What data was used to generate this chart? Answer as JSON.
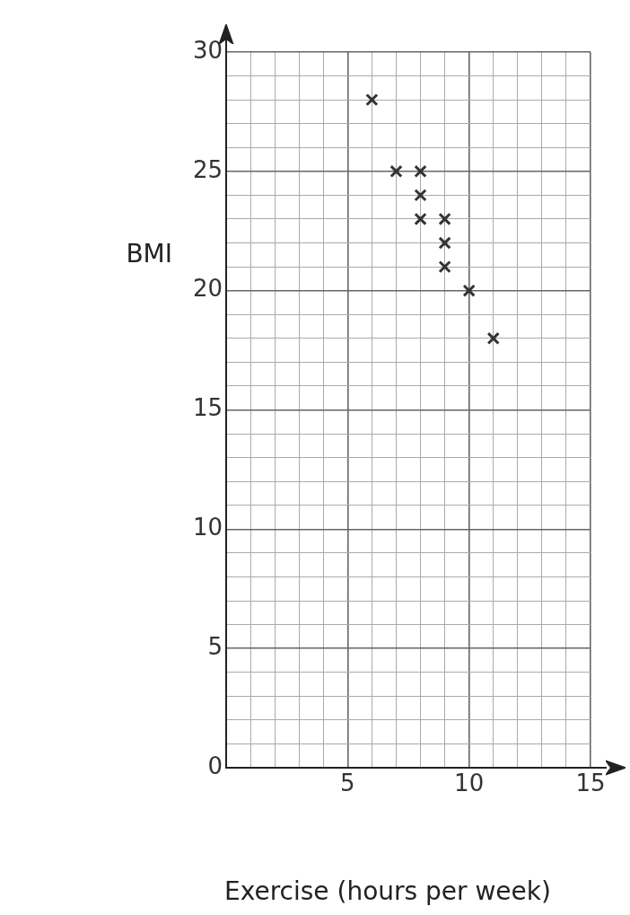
{
  "chart_data": {
    "type": "scatter",
    "xlabel": "Exercise (hours per week)",
    "ylabel": "BMI",
    "x": [
      6,
      7,
      8,
      8,
      8,
      9,
      9,
      9,
      10,
      11
    ],
    "values": [
      28,
      25,
      25,
      24,
      23,
      23,
      22,
      21,
      20,
      18
    ],
    "color": "#333333",
    "marker": "cross",
    "grid": true,
    "legend": false,
    "xlim": [
      0,
      15
    ],
    "xticks": [
      {
        "value": 0,
        "label": null
      },
      {
        "value": 1,
        "label": null
      },
      {
        "value": 2,
        "label": null
      },
      {
        "value": 3,
        "label": null
      },
      {
        "value": 4,
        "label": null
      },
      5,
      {
        "value": 6,
        "label": null
      },
      {
        "value": 7,
        "label": null
      },
      {
        "value": 8,
        "label": null
      },
      {
        "value": 9,
        "label": null
      },
      10,
      {
        "value": 11,
        "label": null
      },
      {
        "value": 12,
        "label": null
      },
      {
        "value": 13,
        "label": null
      },
      {
        "value": 14,
        "label": null
      },
      15
    ],
    "ylim": [
      0,
      30
    ],
    "yticks": [
      0,
      {
        "value": 1,
        "label": null
      },
      {
        "value": 2,
        "label": null
      },
      {
        "value": 3,
        "label": null
      },
      {
        "value": 4,
        "label": null
      },
      5,
      {
        "value": 6,
        "label": null
      },
      {
        "value": 7,
        "label": null
      },
      {
        "value": 8,
        "label": null
      },
      {
        "value": 9,
        "label": null
      },
      10,
      {
        "value": 11,
        "label": null
      },
      {
        "value": 12,
        "label": null
      },
      {
        "value": 13,
        "label": null
      },
      {
        "value": 14,
        "label": null
      },
      15,
      {
        "value": 16,
        "label": null
      },
      {
        "value": 17,
        "label": null
      },
      {
        "value": 18,
        "label": null
      },
      {
        "value": 19,
        "label": null
      },
      20,
      {
        "value": 21,
        "label": null
      },
      {
        "value": 22,
        "label": null
      },
      {
        "value": 23,
        "label": null
      },
      {
        "value": 24,
        "label": null
      },
      25,
      {
        "value": 26,
        "label": null
      },
      {
        "value": 27,
        "label": null
      },
      {
        "value": 28,
        "label": null
      },
      {
        "value": 29,
        "label": null
      },
      30
    ]
  }
}
